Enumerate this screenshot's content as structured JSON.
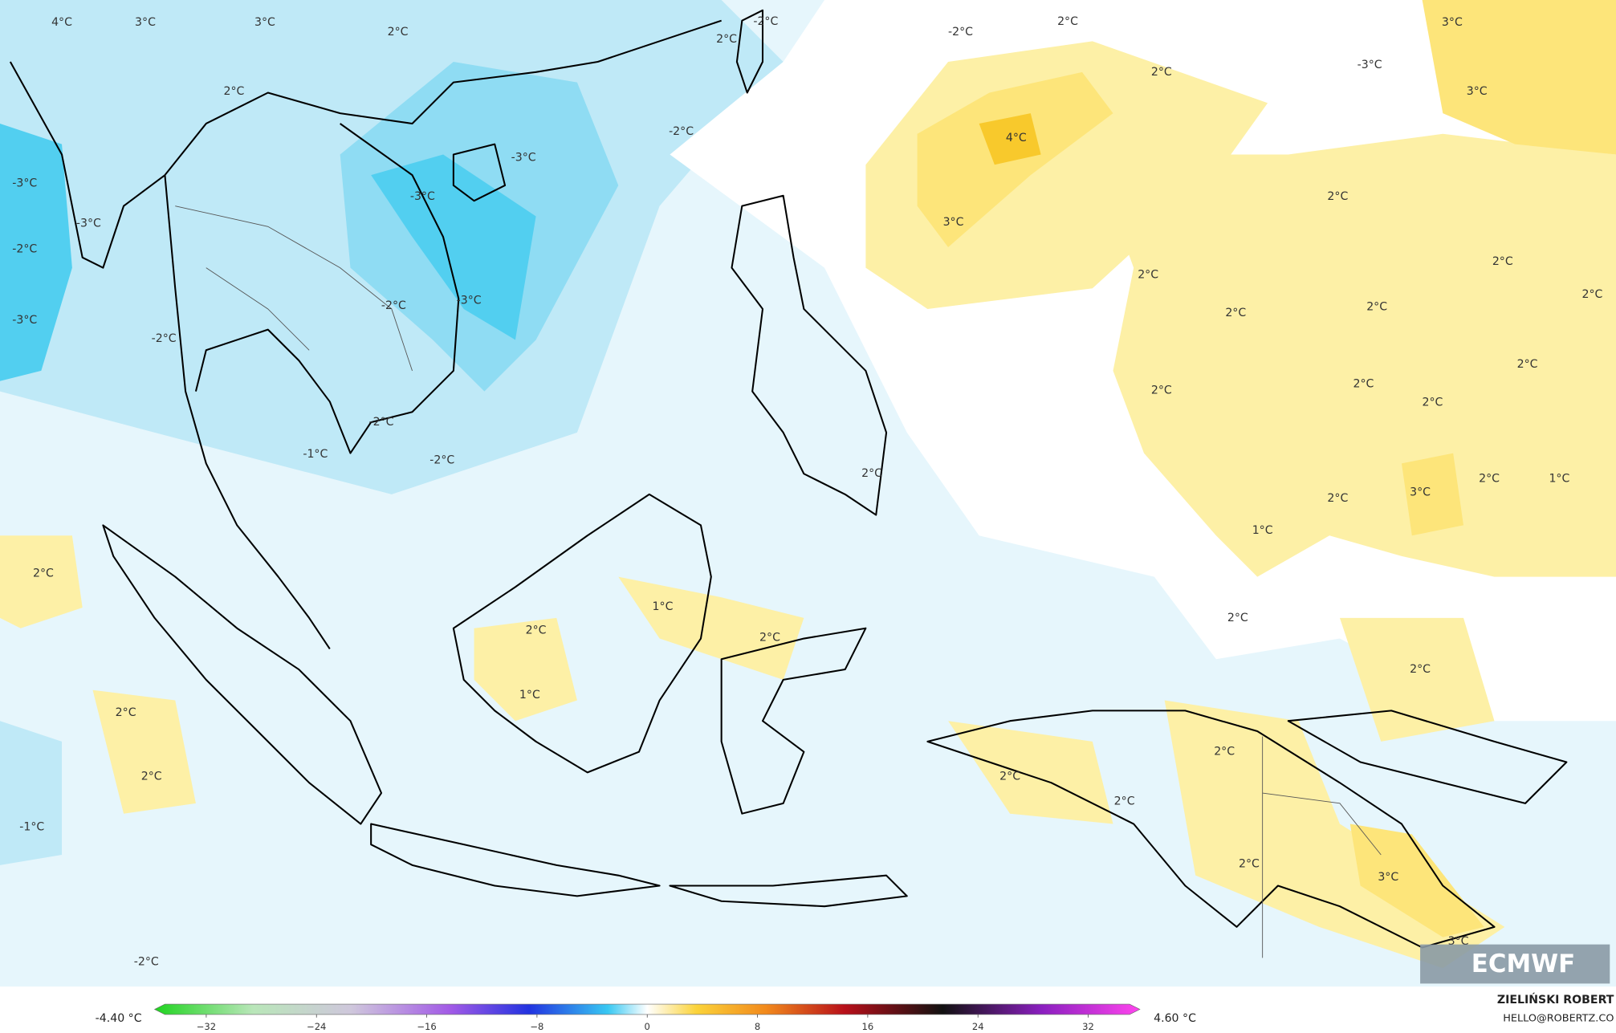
{
  "map": {
    "labels": [
      "4°C",
      "3°C",
      "3°C",
      "2°C",
      "2°C",
      "-3°C",
      "-3°C",
      "-2°C",
      "-3°C",
      "-2°C",
      "-3°C",
      "-3°C",
      "-2°C",
      "-2°C",
      "2°C",
      "-2°C",
      "2°C",
      "3°C",
      "-3°C",
      "3°C",
      "2°C",
      "4°C",
      "3°C",
      "2°C",
      "2°C",
      "2°C",
      "2°C",
      "2°C",
      "2°C",
      "2°C",
      "2°C",
      "2°C",
      "2°C",
      "-2°C",
      "-3°C",
      "-2°C",
      "-1°C",
      "-2°C",
      "2°C",
      "3°C",
      "2°C",
      "1°C",
      "2°C",
      "1°C",
      "2°C",
      "1°C",
      "2°C",
      "2°C",
      "1°C",
      "2°C",
      "2°C",
      "2°C",
      "2°C",
      "-1°C",
      "2°C",
      "2°C",
      "2°C",
      "2°C",
      "3°C",
      "3°C",
      "-2°C"
    ]
  },
  "colorbar": {
    "min_label": "-4.40 °C",
    "max_label": "4.60 °C",
    "range": [
      -35,
      35
    ],
    "ticks": [
      {
        "value": -32,
        "label": "−32"
      },
      {
        "value": -24,
        "label": "−24"
      },
      {
        "value": -16,
        "label": "−16"
      },
      {
        "value": -8,
        "label": "−8"
      },
      0,
      8,
      16,
      24,
      32
    ]
  },
  "credits": {
    "author": "ZIELIŃSKI ROBERT",
    "email": "HELLO@ROBERTZ.CO",
    "logo": "ECMWF"
  }
}
